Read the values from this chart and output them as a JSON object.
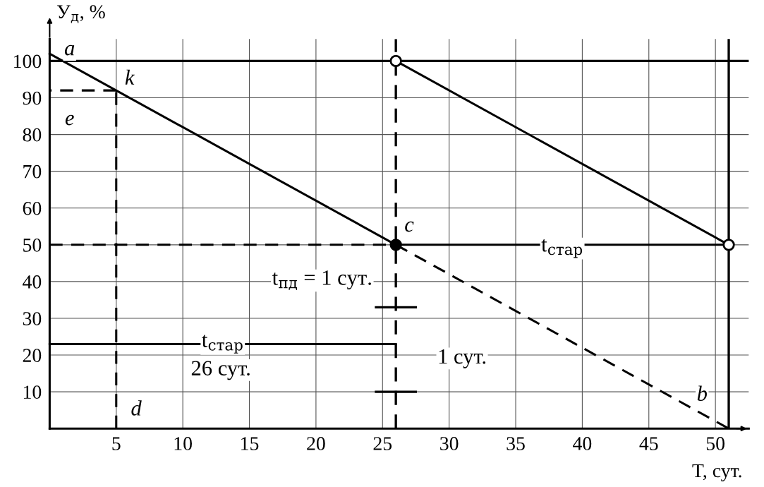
{
  "chart_data": {
    "type": "line",
    "xlabel": "T, сут.",
    "ylabel": "У$_{д}$, %",
    "xlim": [
      0,
      52.5
    ],
    "ylim": [
      0,
      106
    ],
    "xticks": [
      5,
      10,
      15,
      20,
      25,
      30,
      35,
      40,
      45,
      50
    ],
    "yticks": [
      10,
      20,
      30,
      40,
      50,
      60,
      70,
      80,
      90,
      100
    ],
    "grid": true,
    "legend": false,
    "series": [
      {
        "color": "#000000",
        "x": [
          0,
          26
        ],
        "values": [
          102,
          50
        ],
        "line_style": "solid"
      },
      {
        "color": "#000000",
        "x": [
          26,
          51
        ],
        "values": [
          50,
          0
        ],
        "line_style": "dashed"
      },
      {
        "color": "#000000",
        "x": [
          26,
          51
        ],
        "values": [
          100,
          50
        ],
        "line_style": "solid"
      },
      {
        "color": "#000000",
        "x": [
          5,
          5
        ],
        "values": [
          0,
          92
        ],
        "line_style": "dashed"
      },
      {
        "color": "#000000",
        "x": [
          5,
          0
        ],
        "values": [
          92,
          92
        ],
        "line_style": "dashed"
      },
      {
        "color": "#000000",
        "x": [
          0,
          26
        ],
        "values": [
          50,
          50
        ],
        "line_style": "dashed"
      },
      {
        "color": "#000000",
        "x": [
          0,
          26
        ],
        "values": [
          23,
          23
        ],
        "line_style": "solid"
      },
      {
        "color": "#000000",
        "x": [
          26,
          51
        ],
        "values": [
          50,
          50
        ],
        "line_style": "solid"
      },
      {
        "color": "#000000",
        "x": [
          24.5,
          27.5
        ],
        "values": [
          33,
          33
        ],
        "line_style": "solid"
      },
      {
        "color": "#000000",
        "x": [
          24.5,
          27.5
        ],
        "values": [
          10,
          10
        ],
        "line_style": "solid"
      },
      {
        "type": "scatter",
        "color": "#000000",
        "x": [
          26
        ],
        "values": [
          50
        ],
        "marker": "circle"
      },
      {
        "type": "scatter",
        "color": "#ffffff",
        "x": [
          26,
          51
        ],
        "values": [
          100,
          50
        ],
        "marker": "circle"
      }
    ],
    "ref_lines": [
      {
        "axis": "y",
        "value": 100,
        "color": "#000000",
        "line_style": "solid"
      },
      {
        "axis": "x",
        "value": 51,
        "color": "#000000",
        "line_style": "solid"
      },
      {
        "axis": "x",
        "value": 26,
        "color": "#000000",
        "line_style": "dashed"
      }
    ],
    "annotations": [
      {
        "text": "a",
        "x": 1.5,
        "y": 103
      },
      {
        "text": "k",
        "x": 6,
        "y": 95
      },
      {
        "text": "e",
        "x": 1.5,
        "y": 84
      },
      {
        "text": "d",
        "x": 6.5,
        "y": 5
      },
      {
        "text": "c",
        "x": 27,
        "y": 55
      },
      {
        "text": "b",
        "x": 49,
        "y": 9
      },
      {
        "text": "t$_{стар}$",
        "x": 13,
        "y": 23
      },
      "26 сут.",
      {
        "text": "t$_{стар}$",
        "x": 38.5,
        "y": 49
      },
      "t$_{пд}$ = 1 сут.",
      "1 сут."
    ]
  }
}
